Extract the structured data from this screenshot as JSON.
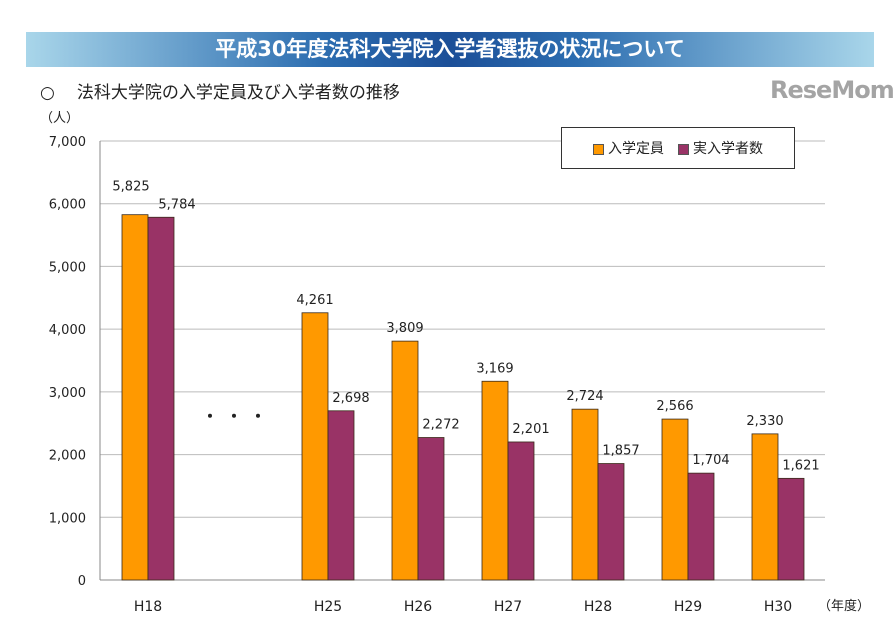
{
  "header": {
    "title": "平成30年度法科大学院入学者選抜の状況について",
    "subtitle_marker": "○",
    "subtitle": "法科大学院の入学定員及び入学者数の推移"
  },
  "watermark": "ReseMom",
  "chart_data": {
    "type": "bar",
    "categories": [
      "H18",
      "・・・",
      "H25",
      "H26",
      "H27",
      "H28",
      "H29",
      "H30"
    ],
    "series": [
      {
        "name": "入学定員",
        "color": "#ff9900",
        "values": [
          5825,
          null,
          4261,
          3809,
          3169,
          2724,
          2566,
          2330
        ],
        "labels": [
          "5,825",
          "",
          "4,261",
          "3,809",
          "3,169",
          "2,724",
          "2,566",
          "2,330"
        ]
      },
      {
        "name": "実入学者数",
        "color": "#993366",
        "values": [
          5784,
          null,
          2698,
          2272,
          2201,
          1857,
          1704,
          1621
        ],
        "labels": [
          "5,784",
          "",
          "2,698",
          "2,272",
          "2,201",
          "1,857",
          "1,704",
          "1,621"
        ]
      }
    ],
    "ylabel": "（人）",
    "xlabel": "（年度）",
    "ylim": [
      0,
      7000
    ],
    "yticks": [
      "0",
      "1,000",
      "2,000",
      "3,000",
      "4,000",
      "5,000",
      "6,000",
      "7,000"
    ],
    "grid": true,
    "legend": "top-right"
  }
}
